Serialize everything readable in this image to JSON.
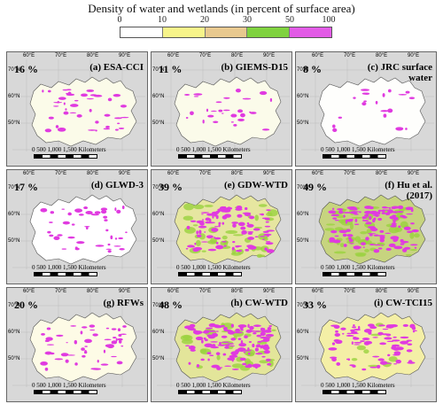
{
  "legend": {
    "title": "Density of water and wetlands (in percent of surface area)",
    "ticks": [
      "0",
      "10",
      "20",
      "30",
      "50",
      "100"
    ],
    "colors": [
      "#ffffff",
      "#f7f48a",
      "#e8c98f",
      "#7fd23f",
      "#e25be6"
    ]
  },
  "lon_labels": [
    "60°E",
    "70°E",
    "80°E",
    "90°E"
  ],
  "lat_labels": [
    "70°N",
    "60°N",
    "50°N"
  ],
  "scale_bar": {
    "ticks": [
      "0",
      "500",
      "1,000",
      "1,500"
    ],
    "unit": "Kilometers"
  },
  "panels": [
    {
      "label": "(a) ESA-CCI",
      "percent": "16 %",
      "fill": "#fbfbe9",
      "magenta": 0.16,
      "green": 0.0
    },
    {
      "label": "(b) GIEMS-D15",
      "percent": "11 %",
      "fill": "#fbfbea",
      "magenta": 0.11,
      "green": 0.0
    },
    {
      "label": "(c) JRC surface water",
      "percent": "8 %",
      "fill": "#fefefc",
      "magenta": 0.08,
      "green": 0.0
    },
    {
      "label": "(d) GLWD-3",
      "percent": "17 %",
      "fill": "#ffffff",
      "magenta": 0.17,
      "green": 0.0
    },
    {
      "label": "(e) GDW-WTD",
      "percent": "39 %",
      "fill": "#e6e6a0",
      "magenta": 0.39,
      "green": 0.5
    },
    {
      "label": "(f) Hu et al. (2017)",
      "percent": "49 %",
      "fill": "#c7d47f",
      "magenta": 0.49,
      "green": 0.7
    },
    {
      "label": "(g) RFWs",
      "percent": "20 %",
      "fill": "#fdfbe6",
      "magenta": 0.2,
      "green": 0.0
    },
    {
      "label": "(h) CW-WTD",
      "percent": "48 %",
      "fill": "#e3e59a",
      "magenta": 0.48,
      "green": 0.4
    },
    {
      "label": "(i) CW-TCI15",
      "percent": "33 %",
      "fill": "#f4efa6",
      "magenta": 0.33,
      "green": 0.1
    }
  ]
}
